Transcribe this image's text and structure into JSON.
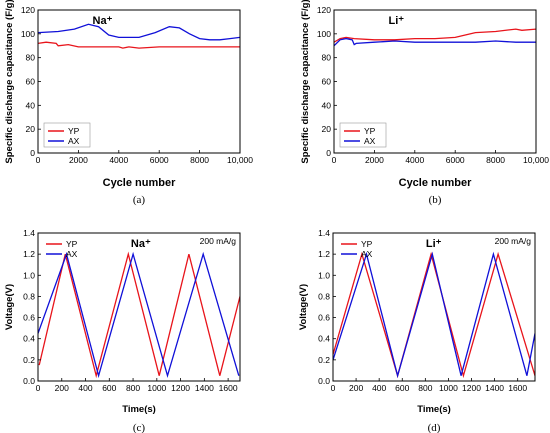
{
  "chart_data": [
    {
      "type": "line",
      "panel": "(a)",
      "annotation": "Na⁺",
      "xlabel": "Cycle number",
      "ylabel": "Specific discharge capacitance (F/g)",
      "xlim": [
        0,
        10000
      ],
      "ylim": [
        0,
        120
      ],
      "xticks": [
        "0",
        "2000",
        "4000",
        "6000",
        "8000",
        "10,000"
      ],
      "yticks": [
        "0",
        "20",
        "40",
        "60",
        "80",
        "100",
        "120"
      ],
      "legend": "bottom-left",
      "series": [
        {
          "name": "YP",
          "color": "#e8141b",
          "x": [
            0,
            400,
            900,
            1000,
            1500,
            2000,
            3000,
            4000,
            4200,
            4500,
            5000,
            6000,
            7000,
            8000,
            9000,
            10000
          ],
          "y": [
            92,
            93,
            92,
            90,
            91,
            89,
            89,
            89,
            88,
            89,
            88,
            89,
            89,
            89,
            89,
            89
          ]
        },
        {
          "name": "AX",
          "color": "#1010d8",
          "x": [
            0,
            1000,
            1800,
            2500,
            3000,
            3500,
            4000,
            5000,
            5800,
            6500,
            7000,
            7500,
            8000,
            8500,
            9000,
            9500,
            10000
          ],
          "y": [
            101,
            102,
            104,
            108,
            106,
            99,
            97,
            97,
            101,
            106,
            105,
            100,
            96,
            95,
            95,
            96,
            97
          ]
        }
      ]
    },
    {
      "type": "line",
      "panel": "(b)",
      "annotation": "Li⁺",
      "xlabel": "Cycle number",
      "ylabel": "Specific discharge capacitance (F/g)",
      "xlim": [
        0,
        10000
      ],
      "ylim": [
        0,
        120
      ],
      "xticks": [
        "0",
        "2000",
        "4000",
        "6000",
        "8000",
        "10,000"
      ],
      "yticks": [
        "0",
        "20",
        "40",
        "60",
        "80",
        "100",
        "120"
      ],
      "legend": "bottom-right",
      "series": [
        {
          "name": "YP",
          "color": "#e8141b",
          "x": [
            0,
            300,
            600,
            1000,
            2000,
            3000,
            4000,
            5000,
            6000,
            6500,
            7000,
            8000,
            9000,
            9300,
            10000
          ],
          "y": [
            93,
            96,
            97,
            96,
            95,
            95,
            96,
            96,
            97,
            99,
            101,
            102,
            104,
            103,
            104
          ]
        },
        {
          "name": "AX",
          "color": "#1010d8",
          "x": [
            0,
            300,
            600,
            900,
            1000,
            1100,
            2000,
            3000,
            4000,
            5000,
            6000,
            7000,
            8000,
            9000,
            10000
          ],
          "y": [
            90,
            95,
            96,
            95,
            91,
            92,
            93,
            94,
            93,
            93,
            93,
            93,
            94,
            93,
            93
          ]
        }
      ]
    },
    {
      "type": "line",
      "panel": "(c)",
      "annotation": "Na⁺",
      "rate": "200 mA/g",
      "xlabel": "Time(s)",
      "ylabel": "Voltage(V)",
      "xlim": [
        0,
        1700
      ],
      "ylim": [
        0,
        1.4
      ],
      "xticks": [
        "0",
        "200",
        "400",
        "600",
        "800",
        "1000",
        "1200",
        "1400",
        "1600"
      ],
      "yticks": [
        "0.0",
        "0.2",
        "0.4",
        "0.6",
        "0.8",
        "1.0",
        "1.2",
        "1.4"
      ],
      "legend": "top-left",
      "series": [
        {
          "name": "YP",
          "color": "#e8141b",
          "x": [
            10,
            230,
            490,
            760,
            1020,
            1270,
            1530,
            1700
          ],
          "y": [
            0.15,
            1.2,
            0.05,
            1.2,
            0.05,
            1.2,
            0.05,
            0.8
          ]
        },
        {
          "name": "AX",
          "color": "#1010d8",
          "x": [
            0,
            240,
            510,
            800,
            1090,
            1390,
            1690
          ],
          "y": [
            0.45,
            1.2,
            0.05,
            1.2,
            0.05,
            1.2,
            0.05
          ]
        }
      ]
    },
    {
      "type": "line",
      "panel": "(d)",
      "annotation": "Li⁺",
      "rate": "200 mA/g",
      "xlabel": "Time(s)",
      "ylabel": "Voltage(V)",
      "xlim": [
        0,
        1750
      ],
      "ylim": [
        0,
        1.4
      ],
      "xticks": [
        "0",
        "200",
        "400",
        "600",
        "800",
        "1000",
        "1200",
        "1400",
        "1600"
      ],
      "yticks": [
        "0.0",
        "0.2",
        "0.4",
        "0.6",
        "0.8",
        "1.0",
        "1.2",
        "1.4"
      ],
      "legend": "top-left",
      "series": [
        {
          "name": "YP",
          "color": "#e8141b",
          "x": [
            0,
            250,
            560,
            850,
            1130,
            1430,
            1750
          ],
          "y": [
            0.25,
            1.2,
            0.05,
            1.2,
            0.05,
            1.2,
            0.05
          ]
        },
        {
          "name": "AX",
          "color": "#1010d8",
          "x": [
            0,
            290,
            560,
            860,
            1110,
            1390,
            1680,
            1750
          ],
          "y": [
            0.2,
            1.2,
            0.05,
            1.2,
            0.05,
            1.2,
            0.05,
            0.45
          ]
        }
      ]
    }
  ]
}
